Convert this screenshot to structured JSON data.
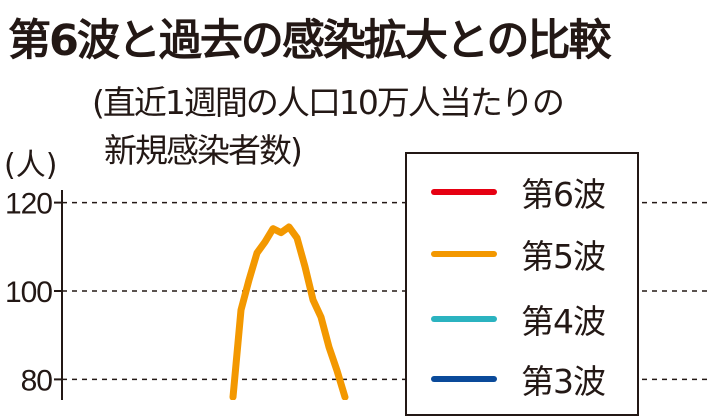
{
  "chart_data": {
    "type": "line",
    "title": "第6波と過去の感染拡大との比較",
    "subtitle_line1": "(直近1週間の人口10万人当たりの",
    "subtitle_line2": "新規感染者数)",
    "ylabel": "(人)",
    "ylim": [
      75,
      125
    ],
    "yticks": [
      "120",
      "100",
      "80"
    ],
    "grid": true,
    "legend_position": "right",
    "legend": [
      {
        "name": "第6波",
        "color": "#e60012"
      },
      {
        "name": "第5波",
        "color": "#f39800"
      },
      {
        "name": "第4波",
        "color": "#2bb3c0"
      },
      {
        "name": "第3波",
        "color": "#0a4a9a"
      }
    ],
    "series": [
      {
        "name": "第5波",
        "color": "#f39800",
        "values": [
          76,
          95.7,
          102.5,
          108.6,
          111.1,
          114.1,
          113.2,
          114.5,
          112,
          105.5,
          98,
          94.1,
          87.3,
          82,
          76
        ]
      }
    ]
  }
}
